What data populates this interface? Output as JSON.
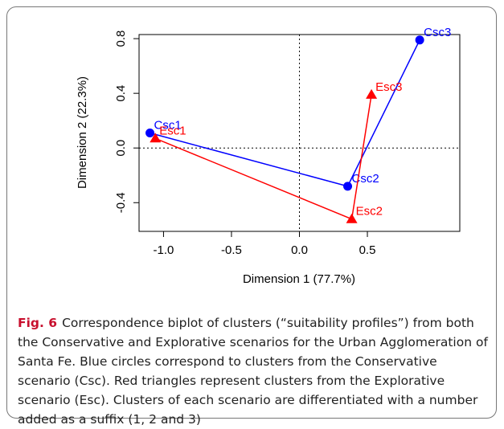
{
  "chart_data": {
    "type": "scatter",
    "xlabel": "Dimension 1 (77.7%)",
    "ylabel": "Dimension 2 (22.3%)",
    "xlim": [
      -1.18,
      1.18
    ],
    "ylim": [
      -0.61,
      0.83
    ],
    "xticks": [
      {
        "value": -1,
        "label": "-1.0"
      },
      -0.5,
      {
        "value": 0,
        "label": "0.0"
      },
      0.5
    ],
    "yticks": [
      -0.4,
      {
        "value": 0,
        "label": "0.0"
      },
      0.4,
      0.8
    ],
    "hline": 0,
    "vline": 0,
    "connect": true,
    "series": [
      {
        "color": "#0000ff",
        "marker": "circle",
        "labels": [
          "Csc1",
          "Csc2",
          "Csc3"
        ],
        "x": [
          -1.1,
          0.355,
          0.885
        ],
        "values": [
          0.11,
          -0.28,
          0.79
        ]
      },
      {
        "color": "#ff0000",
        "marker": "triangle",
        "labels": [
          "Esc1",
          "Esc2",
          "Esc3"
        ],
        "x": [
          -1.06,
          0.385,
          0.53
        ],
        "values": [
          0.07,
          -0.52,
          0.39
        ]
      }
    ]
  },
  "caption": {
    "label": "Fig. 6",
    "text": "Correspondence biplot of clusters (“suitability profiles”) from both the Conservative and Explorative scenarios for the Urban Agglomeration of Santa Fe. Blue circles correspond to clusters from the Conservative scenario (Csc). Red triangles represent clusters from the Explorative scenario (Esc). Clusters of each scenario are differentiated with a number added as a suffix (1, 2 and 3)"
  }
}
